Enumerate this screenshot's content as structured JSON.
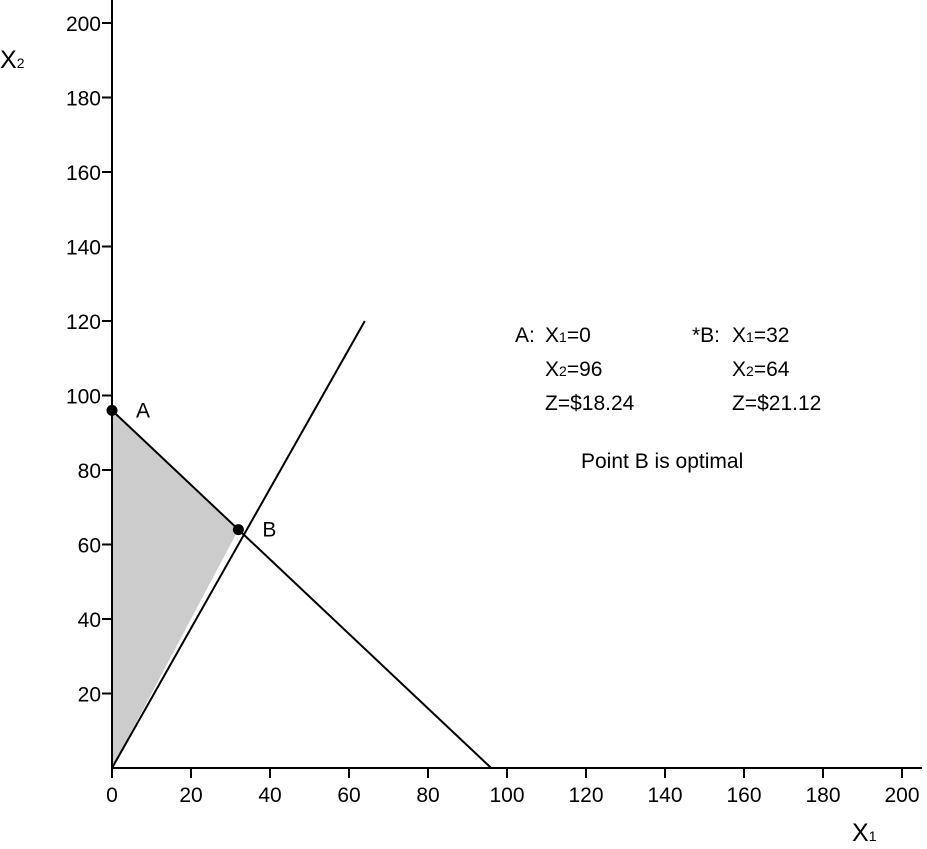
{
  "chart_data": {
    "type": "line",
    "title": "",
    "xlabel": {
      "main": "X",
      "sub": "1"
    },
    "ylabel": {
      "main": "X",
      "sub": "2"
    },
    "xlim": [
      0,
      200
    ],
    "ylim": [
      0,
      200
    ],
    "x_ticks": [
      0,
      20,
      40,
      60,
      80,
      100,
      120,
      140,
      160,
      180,
      200
    ],
    "y_ticks": [
      20,
      40,
      60,
      80,
      100,
      120,
      140,
      160,
      180,
      200
    ],
    "grid": false,
    "constraint_lines": [
      {
        "points": [
          [
            0,
            0
          ],
          [
            64,
            120
          ]
        ]
      },
      {
        "points": [
          [
            0,
            96
          ],
          [
            96,
            0
          ]
        ]
      }
    ],
    "feasible_region": {
      "points": [
        [
          0,
          0
        ],
        [
          0,
          96
        ],
        [
          32,
          64
        ]
      ],
      "fill": "#cccccc"
    },
    "points": [
      {
        "label": "A",
        "x": 0,
        "y": 96
      },
      {
        "label": "B",
        "x": 32,
        "y": 64
      }
    ],
    "annotations": {
      "a_header": "A:",
      "a_x1": {
        "pre": "X",
        "sub": "1",
        "post": "=0"
      },
      "a_x2": {
        "pre": "X",
        "sub": "2",
        "post": "=96"
      },
      "a_z": "Z=$18.24",
      "b_header": "*B:",
      "b_x1": {
        "pre": "X",
        "sub": "1",
        "post": "=32"
      },
      "b_x2": {
        "pre": "X",
        "sub": "2",
        "post": "=64"
      },
      "b_z": "Z=$21.12",
      "optimal_note": "Point B is optimal"
    },
    "colors": {
      "line": "#000000",
      "fill": "#cccccc"
    }
  }
}
